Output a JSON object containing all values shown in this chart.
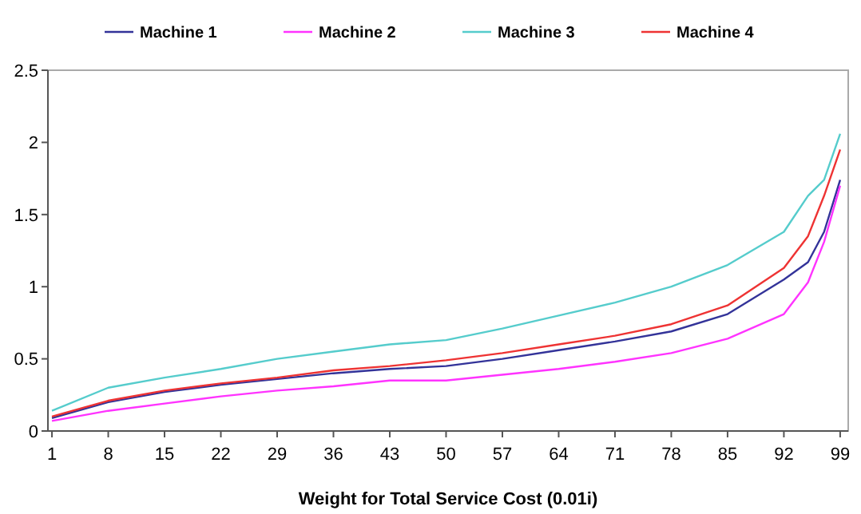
{
  "chart_data": {
    "type": "line",
    "xlabel": "Weight for Total Service Cost (0.01i)",
    "x": [
      1,
      8,
      15,
      22,
      29,
      36,
      43,
      50,
      57,
      64,
      71,
      78,
      85,
      92,
      95,
      97,
      99
    ],
    "series": [
      {
        "name": "Machine 1",
        "color": "#333399",
        "values": [
          0.09,
          0.2,
          0.27,
          0.32,
          0.36,
          0.4,
          0.43,
          0.45,
          0.5,
          0.56,
          0.62,
          0.69,
          0.81,
          1.05,
          1.17,
          1.38,
          1.74
        ]
      },
      {
        "name": "Machine 2",
        "color": "#ff33ff",
        "values": [
          0.07,
          0.14,
          0.19,
          0.24,
          0.28,
          0.31,
          0.35,
          0.35,
          0.39,
          0.43,
          0.48,
          0.54,
          0.64,
          0.81,
          1.03,
          1.31,
          1.7
        ]
      },
      {
        "name": "Machine 3",
        "color": "#55cccc",
        "values": [
          0.14,
          0.3,
          0.37,
          0.43,
          0.5,
          0.55,
          0.6,
          0.63,
          0.71,
          0.8,
          0.89,
          1.0,
          1.15,
          1.38,
          1.63,
          1.74,
          2.06
        ]
      },
      {
        "name": "Machine 4",
        "color": "#ee3333",
        "values": [
          0.1,
          0.21,
          0.28,
          0.33,
          0.37,
          0.42,
          0.45,
          0.49,
          0.54,
          0.6,
          0.66,
          0.74,
          0.87,
          1.13,
          1.35,
          1.63,
          1.95
        ]
      }
    ],
    "xlim": [
      0.5,
      100
    ],
    "xticks": [
      1,
      8,
      15,
      22,
      29,
      36,
      43,
      50,
      57,
      64,
      71,
      78,
      85,
      92,
      99
    ],
    "ylim": [
      0,
      2.5
    ],
    "yticks": [
      0,
      0.5,
      1,
      1.5,
      2,
      2.5
    ],
    "grid": false,
    "legend": "top",
    "marker": "none",
    "line_style": "solid"
  }
}
